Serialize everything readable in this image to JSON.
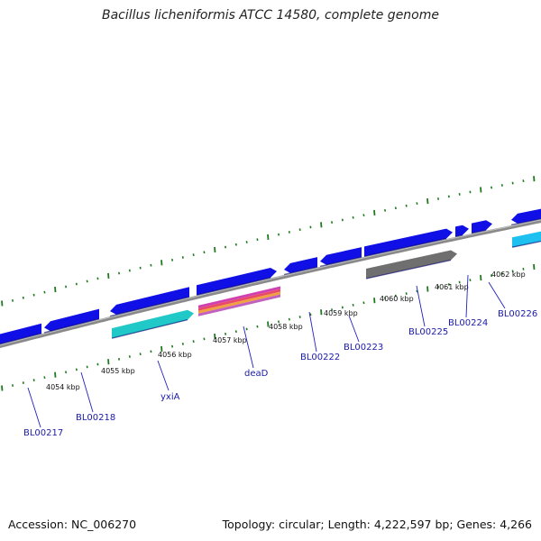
{
  "title": "Bacillus licheniformis ATCC 14580, complete genome",
  "footer": {
    "accession": "Accession: NC_006270",
    "summary": "Topology: circular; Length: 4,222,597 bp; Genes: 4,266"
  },
  "colors": {
    "backbone": "#8a8a8a",
    "cds_forward": "#1010e6",
    "cds_reverse": "#1010e6",
    "feature_cyan": "#20c8c8",
    "feature_gray": "#6f6f6f",
    "feature_lightblue": "#1ec0f0",
    "feature_dead_stripes": [
      "#d040b0",
      "#e84a6a",
      "#f0a040",
      "#c060c0"
    ],
    "ticks": "#1f7a1f",
    "label_line": "#2020c0"
  },
  "scale": {
    "tick_labels": [
      "4054 kbp",
      "4055 kbp",
      "4056 kbp",
      "4057 kbp",
      "4058 kbp",
      "4059 kbp",
      "4060 kbp",
      "4061 kbp",
      "4062 kbp"
    ]
  },
  "genes": [
    {
      "label": "BL00217"
    },
    {
      "label": "BL00218"
    },
    {
      "label": "yxiA"
    },
    {
      "label": "deaD"
    },
    {
      "label": "BL00222"
    },
    {
      "label": "BL00223"
    },
    {
      "label": "BL00225"
    },
    {
      "label": "BL00224"
    },
    {
      "label": "BL00226"
    }
  ]
}
